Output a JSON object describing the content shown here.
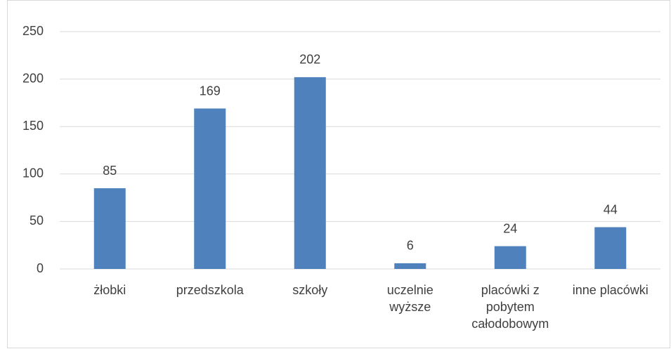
{
  "chart_data": {
    "type": "bar",
    "categories": [
      "żłobki",
      "przedszkola",
      "szkoły",
      "uczelnie wyższe",
      "placówki z pobytem całodobowym",
      "inne placówki"
    ],
    "values": [
      85,
      169,
      202,
      6,
      24,
      44
    ],
    "color": "#4f81bd",
    "ylim": [
      0,
      250
    ],
    "yticks": [
      0,
      50,
      100,
      150,
      200,
      250
    ],
    "grid": true
  }
}
